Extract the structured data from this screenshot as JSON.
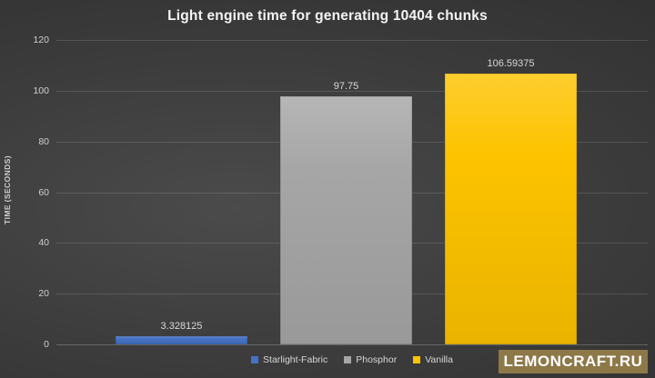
{
  "chart_data": {
    "type": "bar",
    "title": "Light engine time for generating 10404 chunks",
    "ylabel": "TIME (SECONDS)",
    "xlabel": "",
    "categories": [
      "Starlight-Fabric",
      "Phosphor",
      "Vanilla"
    ],
    "values": [
      3.328125,
      97.75,
      106.59375
    ],
    "value_labels": [
      "3.328125",
      "97.75",
      "106.59375"
    ],
    "bar_colors": [
      "#4472c4",
      "#a6a6a6",
      "#fdc300"
    ],
    "ylim": [
      0,
      120
    ],
    "yticks": [
      0,
      20,
      40,
      60,
      80,
      100,
      120
    ],
    "grid": true,
    "legend_position": "bottom"
  },
  "watermark": {
    "text": "LEMONCRAFT.RU",
    "bg_color": "#8d7848",
    "text_color": "#ffffff"
  }
}
